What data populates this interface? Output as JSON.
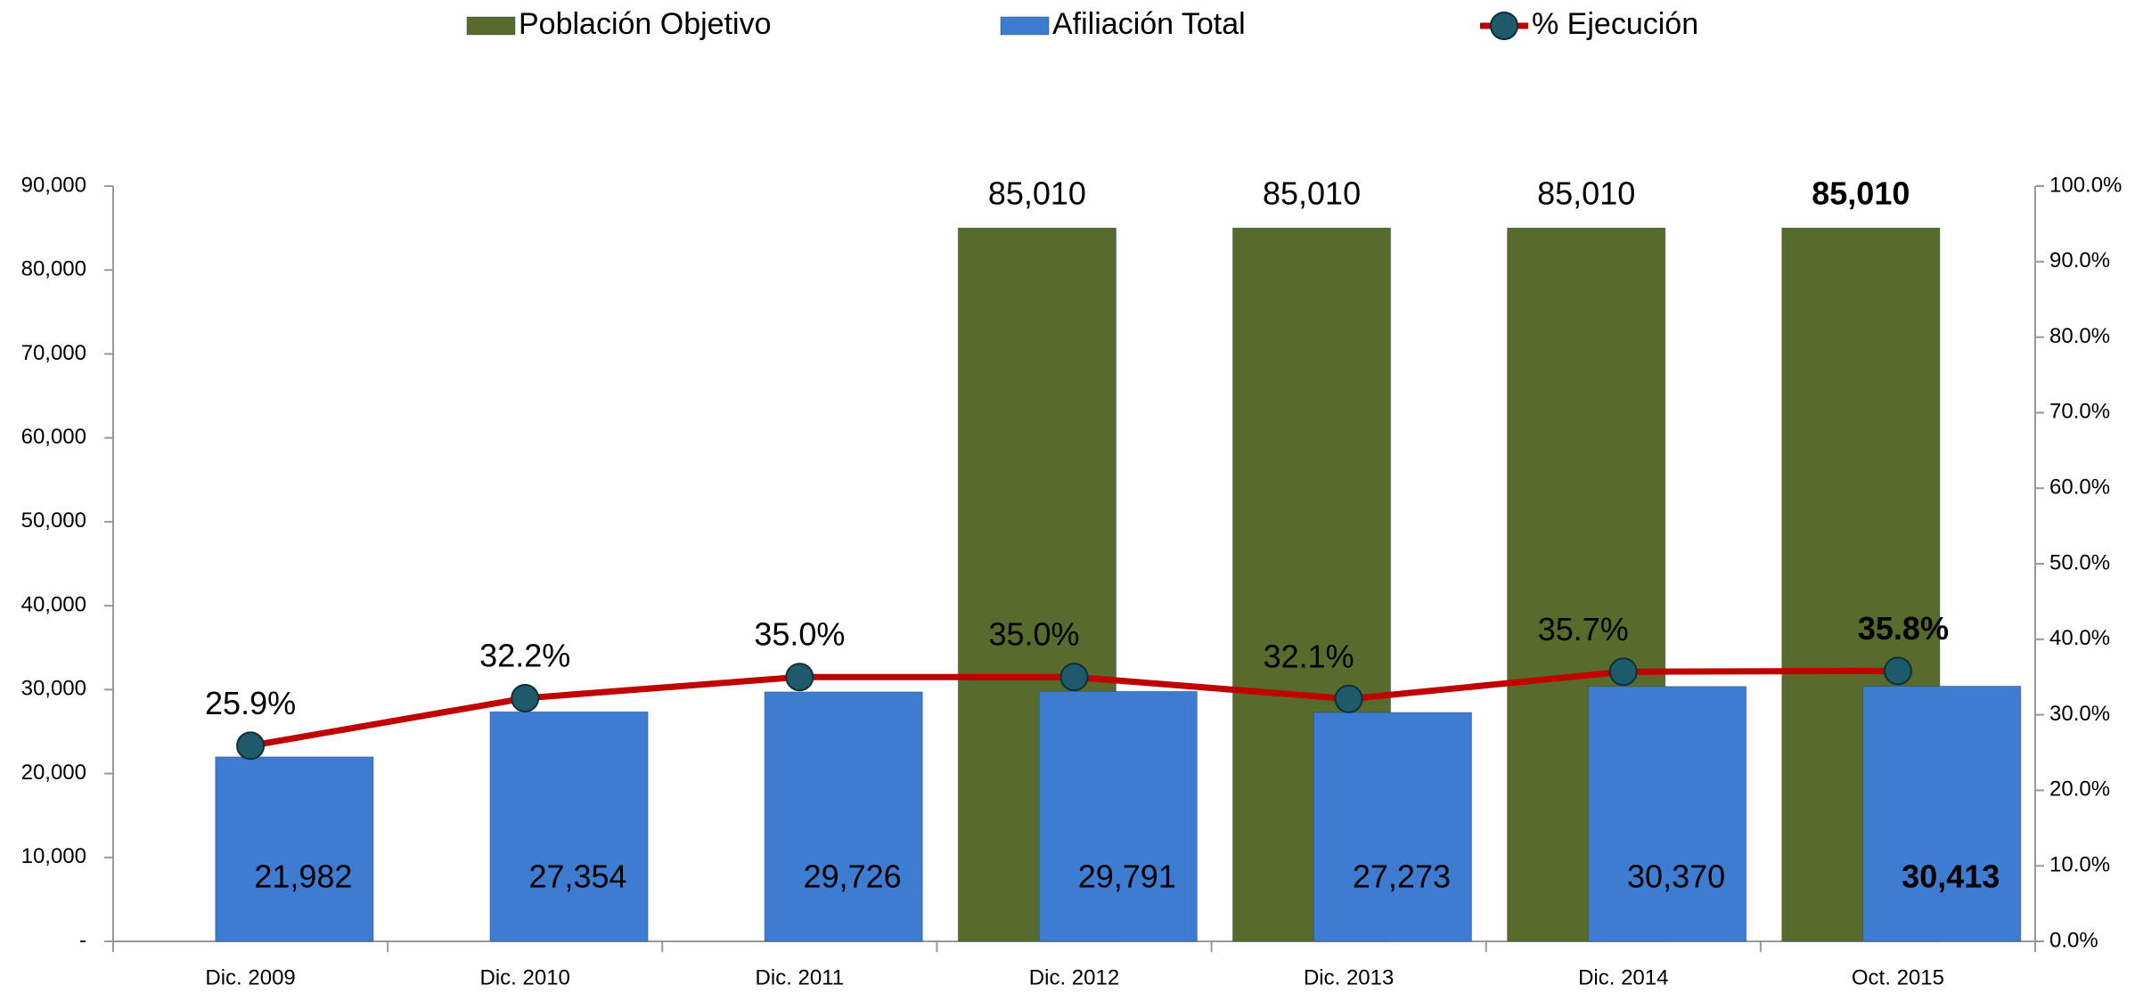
{
  "chart_data": {
    "type": "bar_line",
    "categories": [
      "Dic. 2009",
      "Dic. 2010",
      "Dic. 2011",
      "Dic. 2012",
      "Dic. 2013",
      "Dic. 2014",
      "Oct. 2015"
    ],
    "series": [
      {
        "name": "Población Objetivo",
        "type": "bar",
        "color": "#566b2c",
        "values": [
          null,
          null,
          null,
          85010,
          85010,
          85010,
          85010
        ],
        "value_labels": [
          null,
          null,
          null,
          "85,010",
          "85,010",
          "85,010",
          "85,010"
        ]
      },
      {
        "name": "Afiliación Total",
        "type": "bar",
        "color": "#3d7cd0",
        "values": [
          21982,
          27354,
          29726,
          29791,
          27273,
          30370,
          30413
        ],
        "value_labels": [
          "21,982",
          "27,354",
          "29,726",
          "29,791",
          "27,273",
          "30,370",
          "30,413"
        ]
      },
      {
        "name": "% Ejecución",
        "type": "line",
        "axis": "y2",
        "color": "#c00000",
        "marker_color": "#1f5a6a",
        "values": [
          25.9,
          32.2,
          35.0,
          35.0,
          32.1,
          35.7,
          35.8
        ],
        "value_labels": [
          "25.9%",
          "32.2%",
          "35.0%",
          "35.0%",
          "32.1%",
          "35.7%",
          "35.8%"
        ]
      }
    ],
    "ylim": [
      0,
      90000
    ],
    "yticks": [
      {
        "value": 0,
        "label": "-"
      },
      {
        "value": 10000,
        "label": "10,000"
      },
      {
        "value": 20000,
        "label": "20,000"
      },
      {
        "value": 30000,
        "label": "30,000"
      },
      {
        "value": 40000,
        "label": "40,000"
      },
      {
        "value": 50000,
        "label": "50,000"
      },
      {
        "value": 60000,
        "label": "60,000"
      },
      {
        "value": 70000,
        "label": "70,000"
      },
      {
        "value": 80000,
        "label": "80,000"
      },
      {
        "value": 90000,
        "label": "90,000"
      }
    ],
    "y2lim": [
      0,
      100
    ],
    "y2ticks": [
      {
        "value": 0,
        "label": "0.0%"
      },
      {
        "value": 10,
        "label": "10.0%"
      },
      {
        "value": 20,
        "label": "20.0%"
      },
      {
        "value": 30,
        "label": "30.0%"
      },
      {
        "value": 40,
        "label": "40.0%"
      },
      {
        "value": 50,
        "label": "50.0%"
      },
      {
        "value": 60,
        "label": "60.0%"
      },
      {
        "value": 70,
        "label": "70.0%"
      },
      {
        "value": 80,
        "label": "80.0%"
      },
      {
        "value": 90,
        "label": "90.0%"
      },
      {
        "value": 100,
        "label": "100.0%"
      }
    ]
  }
}
